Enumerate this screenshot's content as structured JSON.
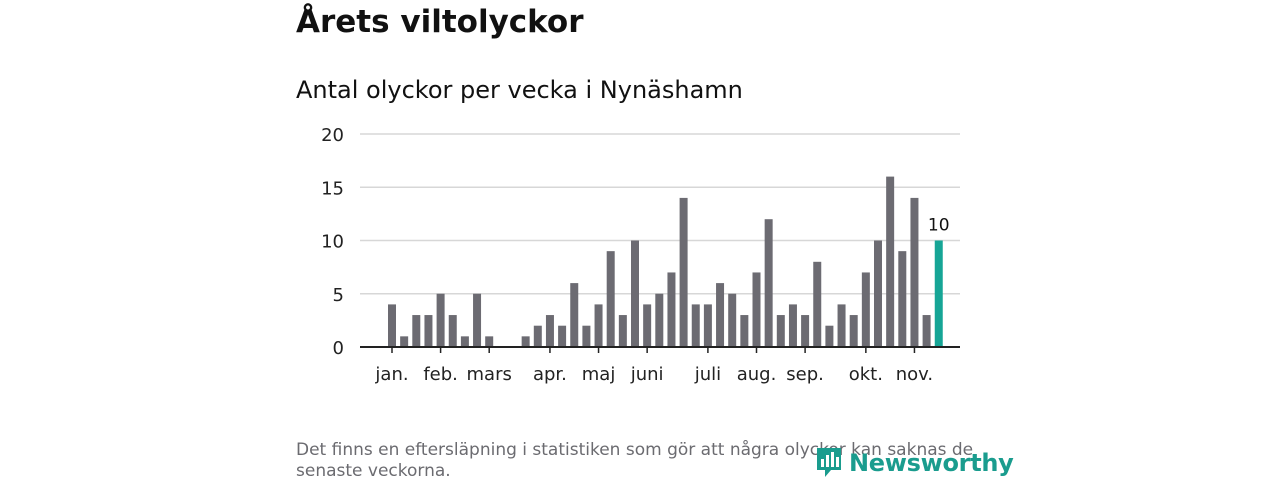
{
  "headline": "Årets viltolyckor",
  "footnote": "Det finns en eftersläpning i statistiken som gör att några olyckor kan saknas de senaste veckorna.",
  "brand": {
    "name": "Newsworthy",
    "icon": "newsworthy-logo-icon"
  },
  "colors": {
    "bar": "#6c6b72",
    "highlight": "#16a596",
    "grid": "#d7d7d7",
    "axis": "#222222",
    "brand": "#1a9c8e"
  },
  "chart_data": {
    "type": "bar",
    "title": "Antal olyckor per vecka i Nynäshamn",
    "xlabel": "",
    "ylabel": "",
    "ylim": [
      0,
      20
    ],
    "yticks": [
      0,
      5,
      10,
      15,
      20
    ],
    "grid": true,
    "weeks": [
      1,
      2,
      3,
      4,
      5,
      6,
      7,
      8,
      9,
      10,
      11,
      12,
      13,
      14,
      15,
      16,
      17,
      18,
      19,
      20,
      21,
      22,
      23,
      24,
      25,
      26,
      27,
      28,
      29,
      30,
      31,
      32,
      33,
      34,
      35,
      36,
      37,
      38,
      39,
      40,
      41,
      42,
      43,
      44,
      45,
      46
    ],
    "values": [
      4,
      1,
      3,
      3,
      5,
      3,
      1,
      5,
      1,
      0,
      0,
      1,
      2,
      3,
      2,
      6,
      2,
      4,
      9,
      3,
      10,
      4,
      5,
      7,
      14,
      4,
      4,
      6,
      5,
      3,
      7,
      12,
      3,
      4,
      3,
      8,
      2,
      4,
      3,
      7,
      10,
      16,
      9,
      14,
      3,
      10
    ],
    "highlight_index": 45,
    "highlight_label": "10",
    "month_labels": [
      {
        "label": "jan.",
        "week": 1
      },
      {
        "label": "feb.",
        "week": 5
      },
      {
        "label": "mars",
        "week": 9
      },
      {
        "label": "apr.",
        "week": 14
      },
      {
        "label": "maj",
        "week": 18
      },
      {
        "label": "juni",
        "week": 22
      },
      {
        "label": "juli",
        "week": 27
      },
      {
        "label": "aug.",
        "week": 31
      },
      {
        "label": "sep.",
        "week": 35
      },
      {
        "label": "okt.",
        "week": 40
      },
      {
        "label": "nov.",
        "week": 44
      }
    ]
  }
}
